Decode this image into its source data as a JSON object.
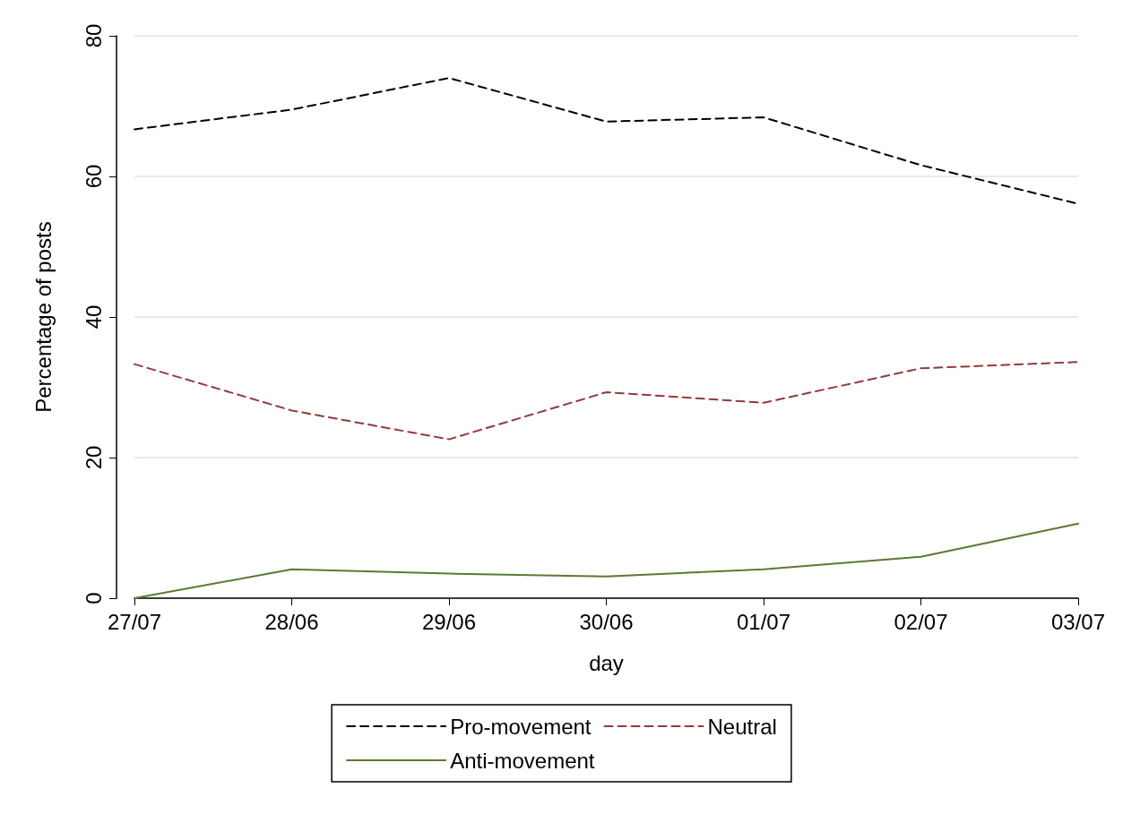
{
  "chart_data": {
    "type": "line",
    "xlabel": "day",
    "ylabel": "Percentage of posts",
    "categories": [
      "27/07",
      "28/06",
      "29/06",
      "30/06",
      "01/07",
      "02/07",
      "03/07"
    ],
    "series": [
      {
        "name": "Pro-movement",
        "color": "#000000",
        "line_style": "dashed",
        "values": [
          66.7,
          69.5,
          74.0,
          67.8,
          68.4,
          61.6,
          56.1
        ]
      },
      {
        "name": "Neutral",
        "color": "#943a3a",
        "line_style": "dashed",
        "values": [
          33.3,
          26.7,
          22.6,
          29.3,
          27.8,
          32.7,
          33.6
        ]
      },
      {
        "name": "Anti-movement",
        "color": "#5b7a33",
        "line_style": "solid",
        "values": [
          0,
          4.1,
          3.5,
          3.1,
          4.1,
          5.9,
          10.6
        ]
      }
    ],
    "ylim": [
      0,
      80
    ],
    "yticks": [
      0,
      20,
      40,
      60,
      80
    ],
    "grid": "y",
    "legend": "bottom",
    "marker": "none"
  }
}
